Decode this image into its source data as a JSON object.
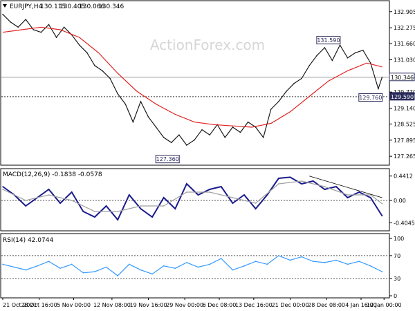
{
  "chart_data": [
    {
      "type": "line",
      "panel": "price",
      "title": "EURJPY,H4",
      "ohlc": [
        "130.115",
        "130.405",
        "130.066",
        "130.346"
      ],
      "watermark": "ActionForex.com",
      "ylim": [
        127.0,
        133.25
      ],
      "y_ticks": [
        "132.905",
        "132.275",
        "131.660",
        "131.030",
        "130.400",
        "129.770",
        "129.140",
        "128.525",
        "127.895",
        "127.265"
      ],
      "series": [
        {
          "role": "price",
          "color": "#1a1a1a",
          "x": [
            0,
            2,
            4,
            6,
            8,
            10,
            12,
            14,
            16,
            18,
            20,
            22,
            24,
            26,
            28,
            30,
            32,
            34,
            36,
            38,
            40,
            42,
            44,
            46,
            48,
            50,
            52,
            54,
            56,
            58,
            60,
            62,
            64,
            66,
            68,
            70,
            72,
            74,
            76,
            78,
            80,
            82,
            84,
            86,
            88,
            90,
            92,
            94,
            96,
            98,
            99
          ],
          "y": [
            132.8,
            132.5,
            132.3,
            132.6,
            132.2,
            132.1,
            132.4,
            131.9,
            132.3,
            132.0,
            131.6,
            131.3,
            130.8,
            130.6,
            130.3,
            129.7,
            129.3,
            128.6,
            129.4,
            128.8,
            128.4,
            128.0,
            127.8,
            128.1,
            127.7,
            127.9,
            128.3,
            128.1,
            128.5,
            128.0,
            128.4,
            128.2,
            128.6,
            128.4,
            128.0,
            129.1,
            129.4,
            129.8,
            130.1,
            130.3,
            130.8,
            131.2,
            131.5,
            131.0,
            131.6,
            131.1,
            131.3,
            131.4,
            130.9,
            129.9,
            130.35
          ]
        },
        {
          "role": "moving-average",
          "color": "#e02020",
          "x": [
            0,
            5,
            10,
            15,
            20,
            25,
            30,
            35,
            40,
            45,
            50,
            55,
            60,
            65,
            70,
            75,
            80,
            85,
            90,
            95,
            99
          ],
          "y": [
            132.1,
            132.2,
            132.3,
            132.2,
            131.9,
            131.3,
            130.5,
            129.8,
            129.3,
            128.9,
            128.6,
            128.5,
            128.45,
            128.4,
            128.55,
            129.0,
            129.6,
            130.2,
            130.6,
            130.9,
            130.75
          ]
        }
      ],
      "reference_lines": [
        {
          "value": 130.346,
          "label": "130.346",
          "style": "solid"
        },
        {
          "value": 129.59,
          "label": "129.590",
          "style": "dotted"
        }
      ],
      "annotations": [
        {
          "text": "131.590",
          "x": 85,
          "y": 131.59
        },
        {
          "text": "129.760",
          "x": 96,
          "y": 129.76
        },
        {
          "text": "127.360",
          "x": 43,
          "y": 127.36
        }
      ]
    },
    {
      "type": "line",
      "panel": "macd",
      "title": "MACD(12,26,9) -0.1838 -0.0578",
      "ylim": [
        -0.5,
        0.5
      ],
      "y_ticks": [
        "0.4412",
        "0.00",
        "-0.4045"
      ],
      "series": [
        {
          "role": "macd",
          "color": "#1a1a8c",
          "x": [
            0,
            3,
            6,
            9,
            12,
            15,
            18,
            21,
            24,
            27,
            30,
            33,
            36,
            39,
            42,
            45,
            48,
            51,
            54,
            57,
            60,
            63,
            66,
            69,
            72,
            75,
            78,
            81,
            84,
            87,
            90,
            93,
            96,
            99
          ],
          "y": [
            0.25,
            0.1,
            -0.1,
            0.05,
            0.2,
            -0.05,
            0.15,
            -0.2,
            -0.3,
            -0.1,
            -0.35,
            0.1,
            -0.15,
            -0.3,
            0.05,
            -0.15,
            0.3,
            0.1,
            0.2,
            0.25,
            -0.05,
            0.1,
            -0.15,
            0.1,
            0.4,
            0.42,
            0.3,
            0.35,
            0.2,
            0.25,
            0.05,
            0.15,
            0.05,
            -0.28
          ]
        },
        {
          "role": "signal",
          "color": "#a0a0a0",
          "x": [
            0,
            6,
            12,
            18,
            24,
            30,
            36,
            42,
            48,
            54,
            60,
            66,
            72,
            78,
            84,
            90,
            96,
            99
          ],
          "y": [
            0.2,
            0.0,
            0.1,
            0.0,
            -0.2,
            -0.2,
            -0.1,
            -0.1,
            0.15,
            0.15,
            0.05,
            -0.05,
            0.3,
            0.35,
            0.25,
            0.1,
            0.1,
            -0.06
          ]
        }
      ],
      "trend_line": {
        "x": [
          80,
          99
        ],
        "y": [
          0.44,
          0.05
        ]
      }
    },
    {
      "type": "line",
      "panel": "rsi",
      "title": "RSI(14) 42.0744",
      "ylim": [
        0,
        100
      ],
      "y_ticks": [
        "100",
        "70",
        "30",
        "0"
      ],
      "levels": [
        70,
        30
      ],
      "series": [
        {
          "role": "rsi",
          "color": "#3399ff",
          "x": [
            0,
            3,
            6,
            9,
            12,
            15,
            18,
            21,
            24,
            27,
            30,
            33,
            36,
            39,
            42,
            45,
            48,
            51,
            54,
            57,
            60,
            63,
            66,
            69,
            72,
            75,
            78,
            81,
            84,
            87,
            90,
            93,
            96,
            99
          ],
          "y": [
            55,
            50,
            45,
            52,
            60,
            48,
            55,
            40,
            42,
            50,
            35,
            55,
            45,
            38,
            52,
            48,
            58,
            50,
            55,
            65,
            45,
            52,
            60,
            55,
            70,
            62,
            68,
            60,
            58,
            62,
            55,
            60,
            52,
            42
          ]
        }
      ]
    }
  ],
  "x_axis": {
    "labels": [
      "21 Oct 2021",
      "28 Oct 16:00",
      "5 Nov 00:00",
      "12 Nov 08:00",
      "19 Nov 16:00",
      "29 Nov 00:00",
      "6 Dec 08:00",
      "13 Dec 16:00",
      "21 Dec 00:00",
      "28 Dec 08:00",
      "4 Jan 16:00",
      "12 Jan 00:00"
    ],
    "positions": [
      0,
      9.5,
      18.5,
      28.5,
      38,
      47.5,
      56.5,
      65.5,
      75,
      84.5,
      93.5,
      99.5
    ]
  }
}
